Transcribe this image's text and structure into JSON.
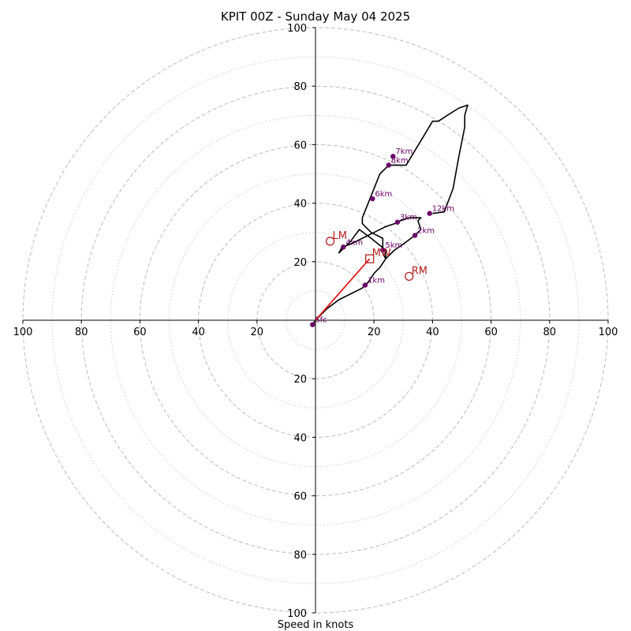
{
  "chart_data": {
    "type": "hodograph",
    "title": "KPIT 00Z - Sunday May 04 2025",
    "xlabel": "Speed in knots",
    "ylabel": "",
    "xlim": [
      -100,
      100
    ],
    "ylim": [
      -100,
      100
    ],
    "tick_values": [
      20,
      40,
      60,
      80,
      100
    ],
    "ring_major": [
      20,
      40,
      60,
      80,
      100
    ],
    "ring_minor": [
      10,
      30,
      50,
      70,
      90
    ],
    "grid": true,
    "colors": {
      "profile": "#000000",
      "height_marker": "#6a006a",
      "motion": "#b22222",
      "mean_wind_vector": "#e31a1c",
      "grid_major": "#bbbbbb",
      "grid_minor": "#cccccc"
    },
    "profile": [
      [
        -1,
        -1.5
      ],
      [
        0,
        0
      ],
      [
        2,
        2
      ],
      [
        4,
        4
      ],
      [
        8,
        7
      ],
      [
        12,
        9
      ],
      [
        16,
        11
      ],
      [
        18,
        13
      ],
      [
        20,
        16
      ],
      [
        22,
        18
      ],
      [
        24,
        21
      ],
      [
        27,
        24
      ],
      [
        30,
        26
      ],
      [
        34,
        29
      ],
      [
        36,
        31
      ],
      [
        35,
        34
      ],
      [
        36,
        35
      ],
      [
        32,
        35
      ],
      [
        29,
        34
      ],
      [
        27,
        33
      ],
      [
        24,
        32
      ],
      [
        20,
        30
      ],
      [
        16,
        28
      ],
      [
        12,
        26
      ],
      [
        9,
        25
      ],
      [
        8,
        23
      ],
      [
        10,
        25
      ],
      [
        12,
        27
      ],
      [
        15,
        31
      ],
      [
        19,
        28
      ],
      [
        24,
        24
      ],
      [
        24,
        21
      ],
      [
        23,
        23
      ],
      [
        23,
        28
      ],
      [
        19,
        30
      ],
      [
        16,
        33
      ],
      [
        16,
        35
      ],
      [
        18,
        40
      ],
      [
        20,
        45
      ],
      [
        22,
        50
      ],
      [
        25,
        53
      ],
      [
        31,
        53
      ],
      [
        34,
        58
      ],
      [
        37,
        63
      ],
      [
        40,
        68
      ],
      [
        42,
        68
      ],
      [
        45,
        70
      ],
      [
        49,
        72.5
      ],
      [
        52,
        73.5
      ],
      [
        51,
        70
      ],
      [
        51,
        66
      ],
      [
        49,
        56
      ],
      [
        47,
        45
      ],
      [
        44,
        37
      ],
      [
        40,
        36.5
      ]
    ],
    "height_markers": [
      {
        "label": "Sfc",
        "u": -1,
        "v": -1.5
      },
      {
        "label": "1km",
        "u": 17,
        "v": 12
      },
      {
        "label": "2km",
        "u": 34,
        "v": 29
      },
      {
        "label": "3km",
        "u": 28,
        "v": 33.5
      },
      {
        "label": "4km",
        "u": 9.5,
        "v": 25
      },
      {
        "label": "5km",
        "u": 23,
        "v": 24
      },
      {
        "label": "6km",
        "u": 19.5,
        "v": 41.5
      },
      {
        "label": "7km",
        "u": 26.5,
        "v": 56
      },
      {
        "label": "8km",
        "u": 25,
        "v": 53
      },
      {
        "label": "12km",
        "u": 39,
        "v": 36.5
      }
    ],
    "storm_motion": [
      {
        "label": "LM",
        "u": 5,
        "v": 27,
        "marker": "circle"
      },
      {
        "label": "MW",
        "u": 18.5,
        "v": 21,
        "marker": "square"
      },
      {
        "label": "RM",
        "u": 32,
        "v": 15,
        "marker": "circle"
      }
    ],
    "mean_wind_vector": {
      "u": 18.5,
      "v": 21
    }
  }
}
